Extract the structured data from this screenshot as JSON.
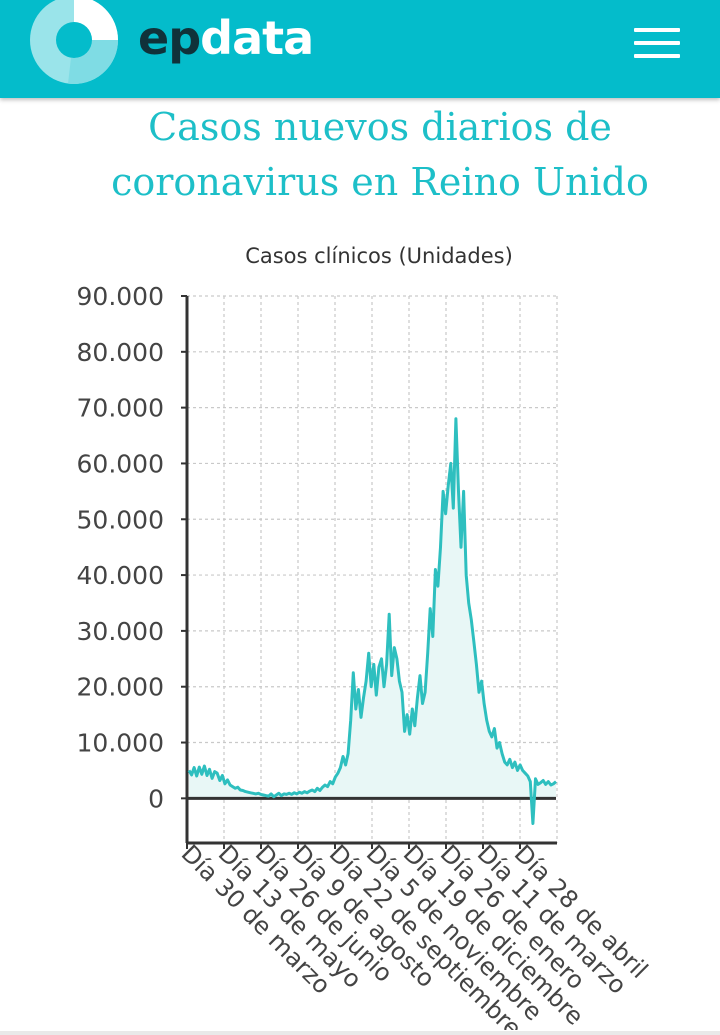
{
  "header": {
    "brand_prefix": "ep",
    "brand_suffix": "data",
    "colors": {
      "bar": "#04bccb",
      "brand_dark": "#10323a"
    },
    "logo_icon": "epdata-donut-logo-icon",
    "menu_icon": "hamburger-menu-icon"
  },
  "page": {
    "title_line1": "Casos nuevos diarios de",
    "title_line2": "coronavirus en Reino Unido"
  },
  "chart_data": {
    "type": "area",
    "subtitle": "Casos clínicos (Unidades)",
    "ylim": [
      -8000,
      90000
    ],
    "yticks": [
      0,
      10000,
      20000,
      30000,
      40000,
      50000,
      60000,
      70000,
      80000,
      90000
    ],
    "ytick_labels": [
      "0",
      "10.000",
      "20.000",
      "30.000",
      "40.000",
      "50.000",
      "60.000",
      "70.000",
      "80.000",
      "90.000"
    ],
    "xtick_labels": [
      "Día 30 de marzo",
      "Día 13 de mayo",
      "Día 26 de junio",
      "Día 9 de agosto",
      "Día 22 de septiembre",
      "Día 5 de noviembre",
      "Día 19 de diciembre",
      "Día 26 de enero",
      "Día 11 de marzo",
      "Día 28 de abril"
    ],
    "grid": true,
    "colors": {
      "line": "#2ebfbf",
      "fill": "#e8f7f6"
    },
    "series": [
      {
        "values": [
          5000,
          4200,
          5500,
          4000,
          5600,
          4300,
          5800,
          4100,
          5200,
          3600,
          4800,
          4500,
          3200,
          4100,
          2600,
          3300,
          2400,
          2100,
          1800,
          2000,
          1500,
          1400,
          1200,
          1100,
          1000,
          900,
          800,
          900,
          700,
          600,
          500,
          400,
          800,
          300,
          600,
          900,
          500,
          800,
          700,
          900,
          700,
          1000,
          800,
          1100,
          900,
          1200,
          1000,
          1300,
          1500,
          1200,
          1800,
          1400,
          2000,
          2400,
          2100,
          3000,
          2600,
          3800,
          4500,
          5500,
          7500,
          6000,
          8000,
          14000,
          22500,
          16000,
          19500,
          14500,
          18000,
          21000,
          26000,
          20000,
          24000,
          18500,
          23500,
          25000,
          20000,
          24000,
          33000,
          22000,
          27000,
          25000,
          21000,
          19000,
          12000,
          15000,
          11500,
          16000,
          13000,
          18000,
          22000,
          17000,
          19000,
          26000,
          34000,
          29000,
          41000,
          38000,
          45000,
          55000,
          51000,
          56000,
          60000,
          52000,
          68000,
          55000,
          45000,
          55000,
          40000,
          35000,
          32000,
          28000,
          24000,
          19000,
          21000,
          17000,
          14000,
          12000,
          11000,
          12500,
          9000,
          10000,
          8000,
          6500,
          6000,
          7000,
          5500,
          6500,
          5000,
          6000,
          5000,
          4500,
          4000,
          3000,
          -4500,
          3500,
          2500,
          2800,
          3200,
          2500,
          3000,
          2400,
          2600,
          3000
        ]
      }
    ]
  }
}
